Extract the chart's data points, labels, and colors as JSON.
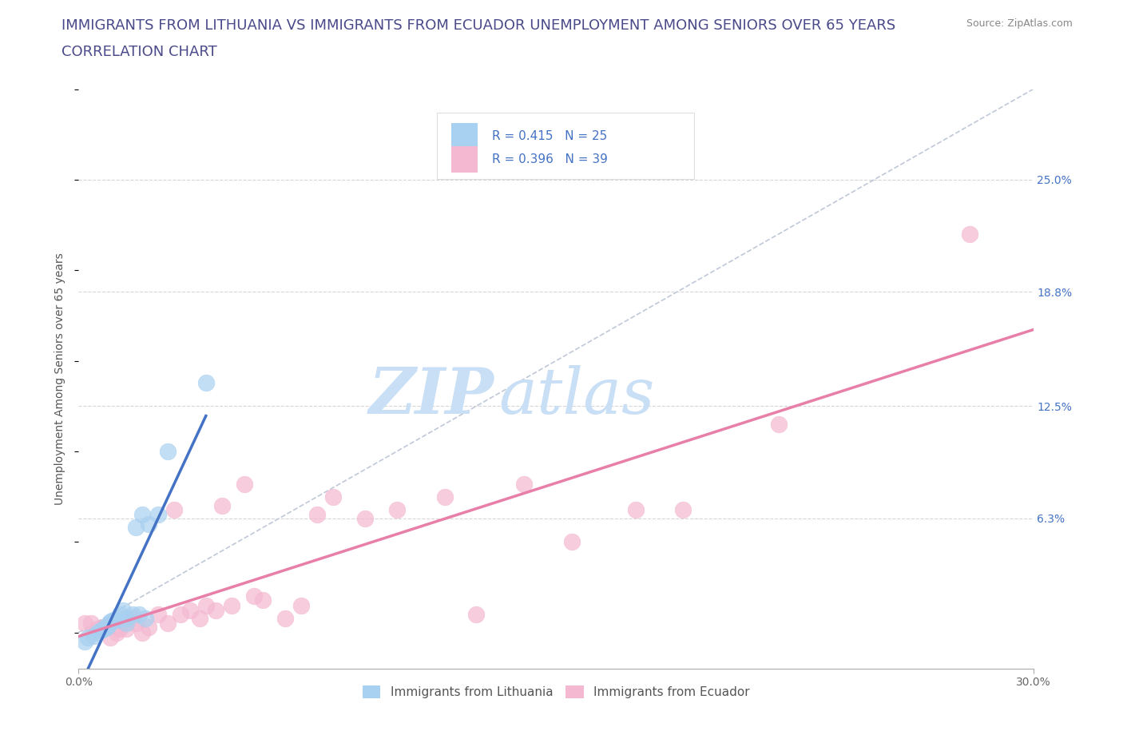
{
  "title_line1": "IMMIGRANTS FROM LITHUANIA VS IMMIGRANTS FROM ECUADOR UNEMPLOYMENT AMONG SENIORS OVER 65 YEARS",
  "title_line2": "CORRELATION CHART",
  "source": "Source: ZipAtlas.com",
  "ylabel": "Unemployment Among Seniors over 65 years",
  "xlim": [
    0.0,
    0.3
  ],
  "ylim": [
    -0.02,
    0.3
  ],
  "ytick_labels_right": [
    "6.3%",
    "12.5%",
    "18.8%",
    "25.0%"
  ],
  "ytick_positions_right": [
    0.063,
    0.125,
    0.188,
    0.25
  ],
  "r_lithuania": 0.415,
  "n_lithuania": 25,
  "r_ecuador": 0.396,
  "n_ecuador": 39,
  "color_lithuania": "#A8D0F0",
  "color_ecuador": "#F4B8D0",
  "color_line_lithuania": "#4472C4",
  "color_line_ecuador": "#E87FA8",
  "watermark_zip": "ZIP",
  "watermark_atlas": "atlas",
  "watermark_color": "#C8DFF5",
  "grid_color": "#CCCCCC",
  "background_color": "#FFFFFF",
  "lithuania_x": [
    0.002,
    0.003,
    0.005,
    0.006,
    0.007,
    0.008,
    0.009,
    0.009,
    0.01,
    0.01,
    0.011,
    0.012,
    0.013,
    0.014,
    0.015,
    0.015,
    0.017,
    0.018,
    0.019,
    0.02,
    0.021,
    0.022,
    0.025,
    0.028,
    0.04
  ],
  "lithuania_y": [
    -0.005,
    -0.003,
    -0.002,
    0.0,
    0.001,
    0.002,
    0.003,
    0.004,
    0.005,
    0.006,
    0.007,
    0.007,
    0.01,
    0.012,
    0.005,
    0.008,
    0.01,
    0.058,
    0.01,
    0.065,
    0.008,
    0.06,
    0.065,
    0.1,
    0.138
  ],
  "ecuador_x": [
    0.002,
    0.004,
    0.006,
    0.008,
    0.01,
    0.012,
    0.013,
    0.015,
    0.017,
    0.018,
    0.02,
    0.022,
    0.025,
    0.028,
    0.03,
    0.032,
    0.035,
    0.038,
    0.04,
    0.043,
    0.045,
    0.048,
    0.052,
    0.055,
    0.058,
    0.065,
    0.07,
    0.075,
    0.08,
    0.09,
    0.1,
    0.115,
    0.125,
    0.14,
    0.155,
    0.175,
    0.19,
    0.22,
    0.28
  ],
  "ecuador_y": [
    0.005,
    0.005,
    0.002,
    0.003,
    -0.003,
    0.0,
    0.002,
    0.002,
    0.008,
    0.005,
    0.0,
    0.003,
    0.01,
    0.005,
    0.068,
    0.01,
    0.012,
    0.008,
    0.015,
    0.012,
    0.07,
    0.015,
    0.082,
    0.02,
    0.018,
    0.008,
    0.015,
    0.065,
    0.075,
    0.063,
    0.068,
    0.075,
    0.01,
    0.082,
    0.05,
    0.068,
    0.068,
    0.115,
    0.22
  ],
  "title_color": "#4a4a8a",
  "title_fontsize": 13,
  "axis_label_fontsize": 10,
  "tick_fontsize": 10,
  "legend_r_color": "#4472C4"
}
